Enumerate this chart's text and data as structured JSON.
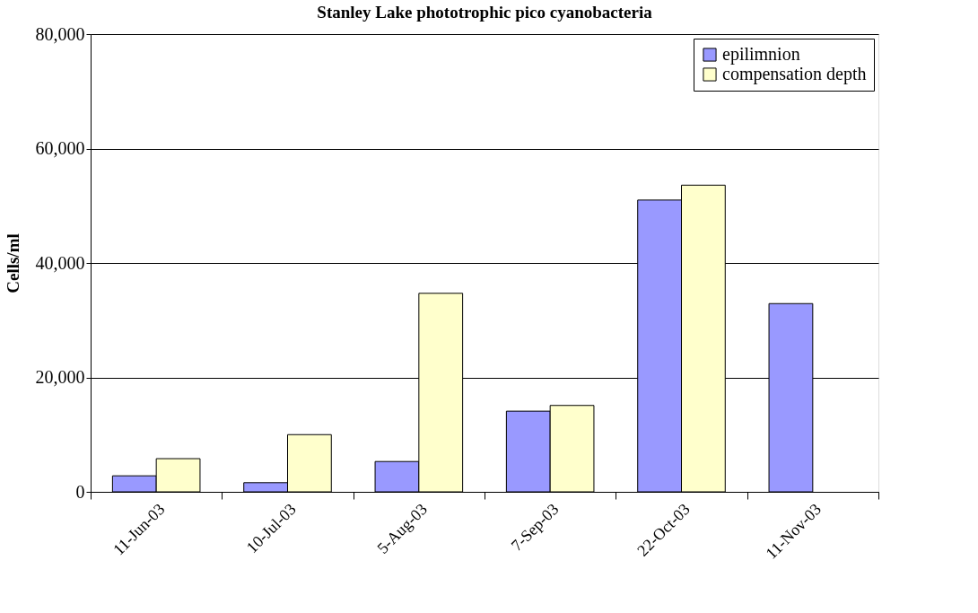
{
  "chart_data": {
    "type": "bar",
    "title": "Stanley Lake phototrophic pico cyanobacteria",
    "ylabel": "Cells/ml",
    "categories": [
      "11-Jun-03",
      "10-Jul-03",
      "5-Aug-03",
      "7-Sep-03",
      "22-Oct-03",
      "11-Nov-03"
    ],
    "series": [
      {
        "name": "epilimnion",
        "color": "#9999ff",
        "values": [
          2800,
          1600,
          5300,
          14100,
          51000,
          32900
        ]
      },
      {
        "name": "compensation depth",
        "color": "#ffffcc",
        "values": [
          5800,
          10000,
          34700,
          15100,
          53600,
          null
        ]
      }
    ],
    "ylim": [
      0,
      80000
    ],
    "yticks": [
      {
        "value": 0,
        "label": "0"
      },
      {
        "value": 20000,
        "label": "20,000"
      },
      {
        "value": 40000,
        "label": "40,000"
      },
      {
        "value": 60000,
        "label": "60,000"
      },
      {
        "value": 80000,
        "label": "80,000"
      }
    ],
    "grid": "y",
    "legend": "top right"
  }
}
